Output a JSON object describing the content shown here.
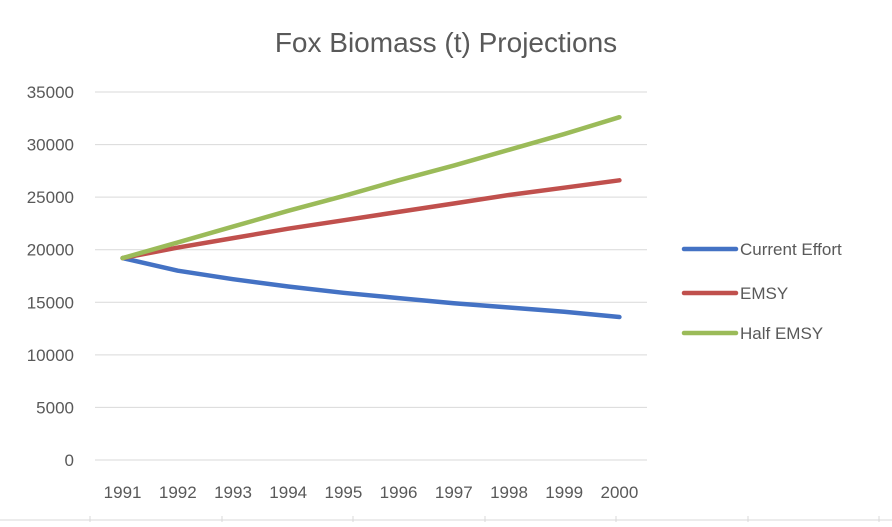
{
  "chart_data": {
    "type": "line",
    "title": "Fox Biomass (t) Projections",
    "xlabel": "",
    "ylabel": "",
    "categories": [
      "1991",
      "1992",
      "1993",
      "1994",
      "1995",
      "1996",
      "1997",
      "1998",
      "1999",
      "2000"
    ],
    "ylim": [
      0,
      35000
    ],
    "yticks": [
      "0",
      "5000",
      "10000",
      "15000",
      "20000",
      "25000",
      "30000",
      "35000"
    ],
    "grid": true,
    "legend_position": "right",
    "series": [
      {
        "name": "Current Effort",
        "color": "#4472C4",
        "values": [
          19200,
          18000,
          17200,
          16500,
          15900,
          15400,
          14900,
          14500,
          14100,
          13600
        ]
      },
      {
        "name": "EMSY",
        "color": "#C0504D",
        "values": [
          19200,
          20200,
          21100,
          22000,
          22800,
          23600,
          24400,
          25200,
          25900,
          26600
        ]
      },
      {
        "name": "Half EMSY",
        "color": "#9BBB59",
        "values": [
          19200,
          20700,
          22200,
          23700,
          25100,
          26600,
          28000,
          29500,
          31000,
          32600
        ]
      }
    ]
  }
}
